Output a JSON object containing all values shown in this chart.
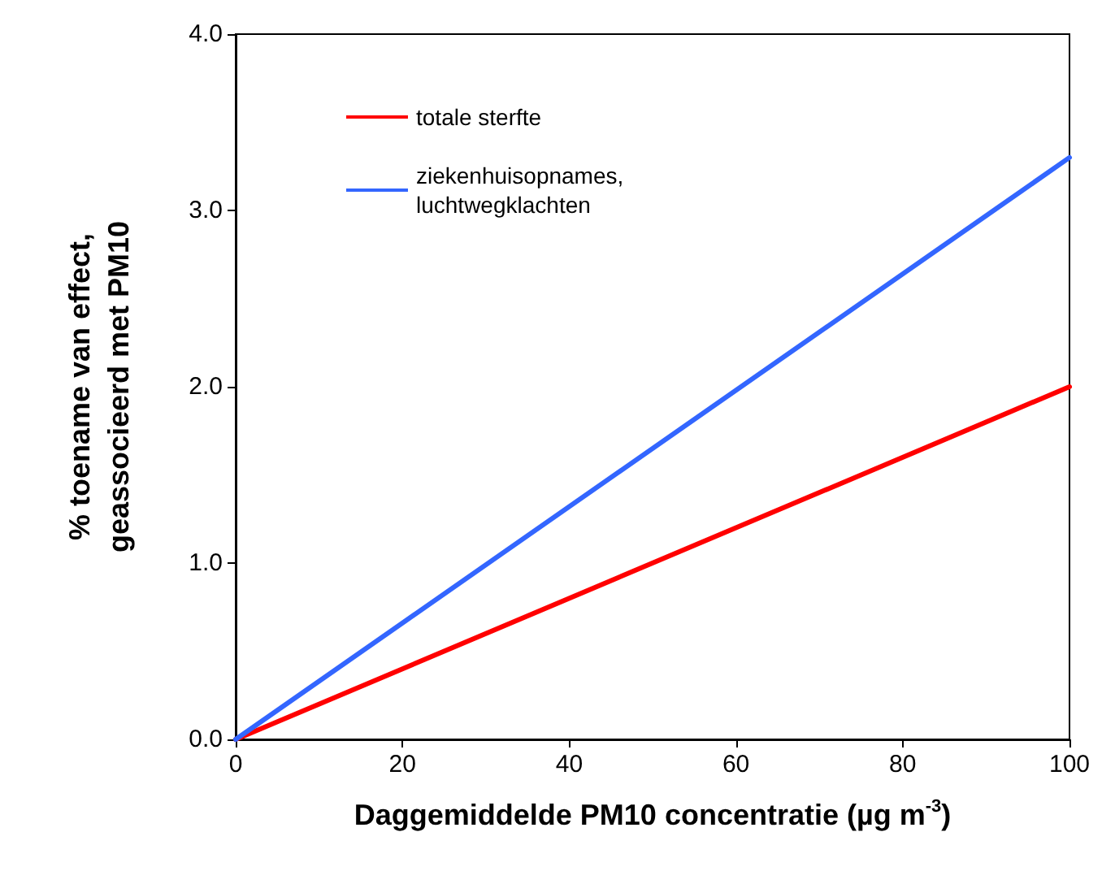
{
  "chart_data": {
    "type": "line",
    "xlabel": "Daggemiddelde PM10 concentratie (µg m$^{-3}$)",
    "ylabel": "% toename van effect,\ngeassocieerd met PM10",
    "x": [
      0,
      100
    ],
    "series": [
      {
        "name": "totale sterfte",
        "color": "#ff0000",
        "values": [
          0,
          2.0
        ]
      },
      {
        "name": "ziekenhuisopnames, luchtwegklachten",
        "color": "#3366ff",
        "values": [
          0,
          3.3
        ]
      }
    ],
    "xlim": [
      0,
      100
    ],
    "xticks": [
      0,
      20,
      40,
      60,
      80,
      100
    ],
    "ylim": [
      0,
      4
    ],
    "yticks": [
      {
        "value": 0,
        "label": "0.0"
      },
      {
        "value": 1,
        "label": "1.0"
      },
      {
        "value": 2,
        "label": "2.0"
      },
      {
        "value": 3,
        "label": "3.0"
      },
      {
        "value": 4,
        "label": "4.0"
      }
    ],
    "grid": false,
    "legend": "top left",
    "marker": "none",
    "line_style": "solid"
  }
}
